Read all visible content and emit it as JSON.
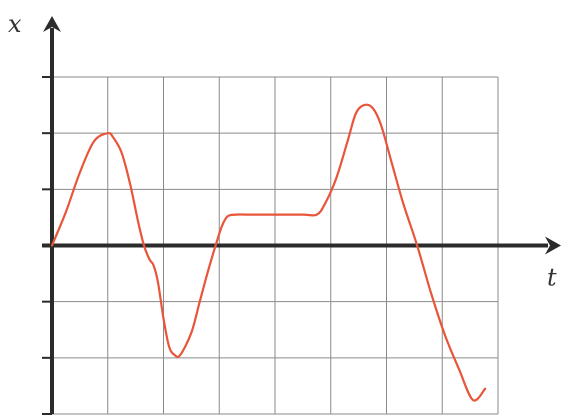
{
  "chart_data": {
    "type": "line",
    "xlabel": "t",
    "ylabel": "x",
    "xlim": [
      0,
      8
    ],
    "ylim": [
      -3,
      3
    ],
    "x_gridlines": [
      0,
      1,
      2,
      3,
      4,
      5,
      6,
      7,
      8
    ],
    "y_gridlines": [
      -3,
      -2,
      -1,
      0,
      1,
      2,
      3
    ],
    "grid": true,
    "legend": "none",
    "series": [
      {
        "color": "#e8553a",
        "x": [
          0,
          0.25,
          0.5,
          0.75,
          1.0,
          1.1,
          1.25,
          1.4,
          1.55,
          1.65,
          1.75,
          1.82,
          1.9,
          2.0,
          2.1,
          2.2,
          2.3,
          2.5,
          2.65,
          2.8,
          2.95,
          3.05,
          3.15,
          3.3,
          3.5,
          4.0,
          4.5,
          4.75,
          4.9,
          5.1,
          5.3,
          5.45,
          5.6,
          5.75,
          5.9,
          6.1,
          6.3,
          6.55,
          6.8,
          7.05,
          7.3,
          7.55,
          7.77
        ],
        "values": [
          0.0,
          0.6,
          1.3,
          1.85,
          2.0,
          1.92,
          1.65,
          1.1,
          0.4,
          0.0,
          -0.25,
          -0.35,
          -0.65,
          -1.3,
          -1.8,
          -1.95,
          -1.95,
          -1.55,
          -1.0,
          -0.45,
          0.05,
          0.35,
          0.52,
          0.55,
          0.55,
          0.55,
          0.55,
          0.55,
          0.75,
          1.2,
          1.85,
          2.35,
          2.5,
          2.45,
          2.15,
          1.45,
          0.75,
          0.0,
          -0.85,
          -1.6,
          -2.2,
          -2.75,
          -2.55
        ]
      }
    ]
  }
}
